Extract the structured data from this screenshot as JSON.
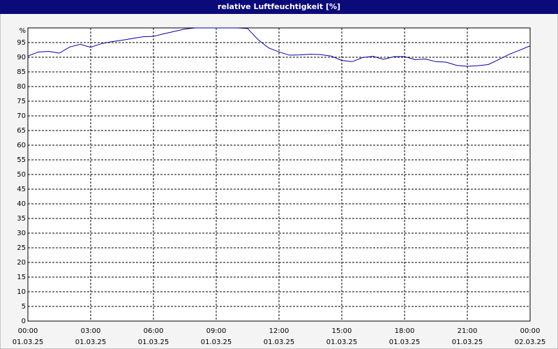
{
  "chart_data": {
    "type": "line",
    "title": "relative Luftfeuchtigkeit [%]",
    "x": [
      0,
      0.5,
      1,
      1.5,
      2,
      2.5,
      3,
      3.5,
      4,
      4.5,
      5,
      5.5,
      6,
      6.5,
      7,
      7.5,
      8,
      8.5,
      9,
      9.5,
      10,
      10.5,
      11,
      11.5,
      12,
      12.5,
      13,
      13.5,
      14,
      14.5,
      15,
      15.5,
      16,
      16.5,
      17,
      17.5,
      18,
      18.5,
      19,
      19.5,
      20,
      20.5,
      21,
      21.5,
      22,
      22.5,
      23,
      23.5,
      24
    ],
    "series": [
      {
        "color": "#0000a0",
        "values": [
          90.4,
          91.8,
          92,
          91.4,
          93.5,
          94.4,
          93.4,
          94.6,
          95.3,
          95.8,
          96.4,
          97,
          97.1,
          98,
          98.8,
          99.6,
          100,
          100,
          100,
          100,
          100,
          99.8,
          96,
          93.2,
          91.8,
          90.7,
          90.8,
          91,
          90.9,
          90.4,
          88.9,
          88.5,
          89.9,
          90.3,
          89.3,
          90.2,
          90.2,
          89.2,
          89.4,
          88.5,
          88.3,
          87.2,
          86.9,
          87.1,
          87.5,
          89.2,
          91,
          92.4,
          93.9
        ]
      }
    ],
    "xlim": [
      0,
      24
    ],
    "xticks": [
      {
        "value": 0,
        "label": "00:00"
      },
      {
        "value": 3,
        "label": "03:00"
      },
      {
        "value": 6,
        "label": "06:00"
      },
      {
        "value": 9,
        "label": "09:00"
      },
      {
        "value": 12,
        "label": "12:00"
      },
      {
        "value": 15,
        "label": "15:00"
      },
      {
        "value": 18,
        "label": "18:00"
      },
      {
        "value": 21,
        "label": "21:00"
      },
      {
        "value": 24,
        "label": "00:00"
      }
    ],
    "xtick_dates": [
      "01.03.25",
      "01.03.25",
      "01.03.25",
      "01.03.25",
      "01.03.25",
      "01.03.25",
      "01.03.25",
      "01.03.25",
      "02.03.25"
    ],
    "ylim": [
      0,
      100
    ],
    "yticks": [
      0,
      5,
      10,
      15,
      20,
      25,
      30,
      35,
      40,
      45,
      50,
      55,
      60,
      65,
      70,
      75,
      80,
      85,
      90,
      95,
      {
        "value": 100,
        "label": "%"
      }
    ],
    "grid": true
  }
}
